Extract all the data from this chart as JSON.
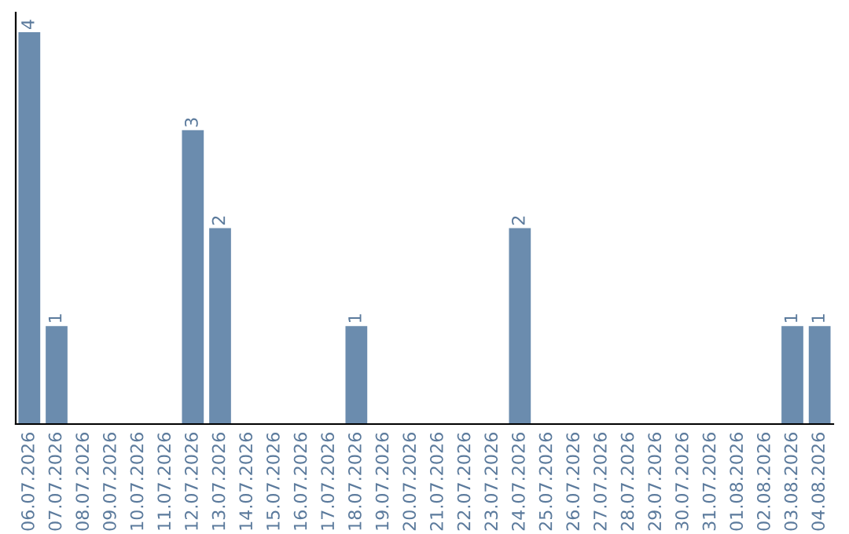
{
  "chart_data": {
    "type": "bar",
    "categories": [
      "06.07.2026",
      "07.07.2026",
      "08.07.2026",
      "09.07.2026",
      "10.07.2026",
      "11.07.2026",
      "12.07.2026",
      "13.07.2026",
      "14.07.2026",
      "15.07.2026",
      "16.07.2026",
      "17.07.2026",
      "18.07.2026",
      "19.07.2026",
      "20.07.2026",
      "21.07.2026",
      "22.07.2026",
      "23.07.2026",
      "24.07.2026",
      "25.07.2026",
      "26.07.2026",
      "27.07.2026",
      "28.07.2026",
      "29.07.2026",
      "30.07.2026",
      "31.07.2026",
      "01.08.2026",
      "02.08.2026",
      "03.08.2026",
      "04.08.2026"
    ],
    "values": [
      4,
      1,
      0,
      0,
      0,
      0,
      3,
      2,
      0,
      0,
      0,
      0,
      1,
      0,
      0,
      0,
      0,
      0,
      2,
      0,
      0,
      0,
      0,
      0,
      0,
      0,
      0,
      0,
      1,
      1
    ],
    "value_labels": [
      "4",
      "1",
      null,
      null,
      null,
      null,
      "3",
      "2",
      null,
      null,
      null,
      null,
      "1",
      null,
      null,
      null,
      null,
      null,
      "2",
      null,
      null,
      null,
      null,
      null,
      null,
      null,
      null,
      null,
      "1",
      "1"
    ],
    "color": "#6b8cae",
    "grid": false,
    "legend": false,
    "tick_labels": "x"
  }
}
